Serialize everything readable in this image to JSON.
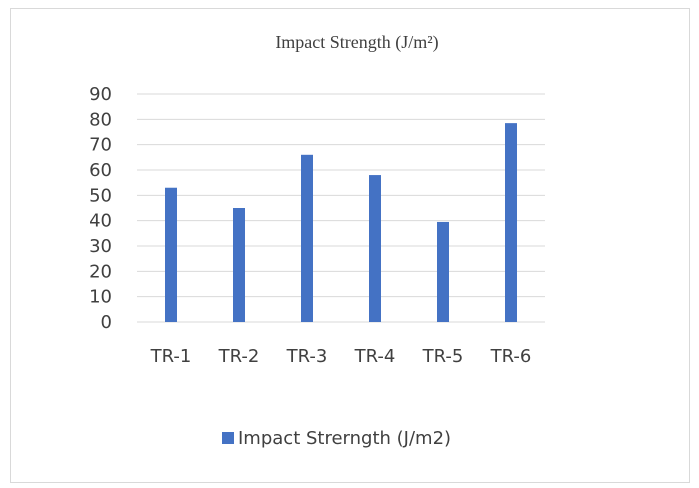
{
  "chart_data": {
    "type": "bar",
    "title": "Impact Strength (J/m²)",
    "categories": [
      "TR-1",
      "TR-2",
      "TR-3",
      "TR-4",
      "TR-5",
      "TR-6"
    ],
    "series": [
      {
        "name": "Impact Strerngth (J/m2)",
        "values": [
          53,
          45,
          66,
          58,
          39.5,
          78.5
        ],
        "color": "#4472c4"
      }
    ],
    "xlabel": "",
    "ylabel": "",
    "ylim": [
      0,
      90
    ],
    "yticks": [
      0,
      10,
      20,
      30,
      40,
      50,
      60,
      70,
      80,
      90
    ],
    "grid": true,
    "legend": "bottom"
  }
}
